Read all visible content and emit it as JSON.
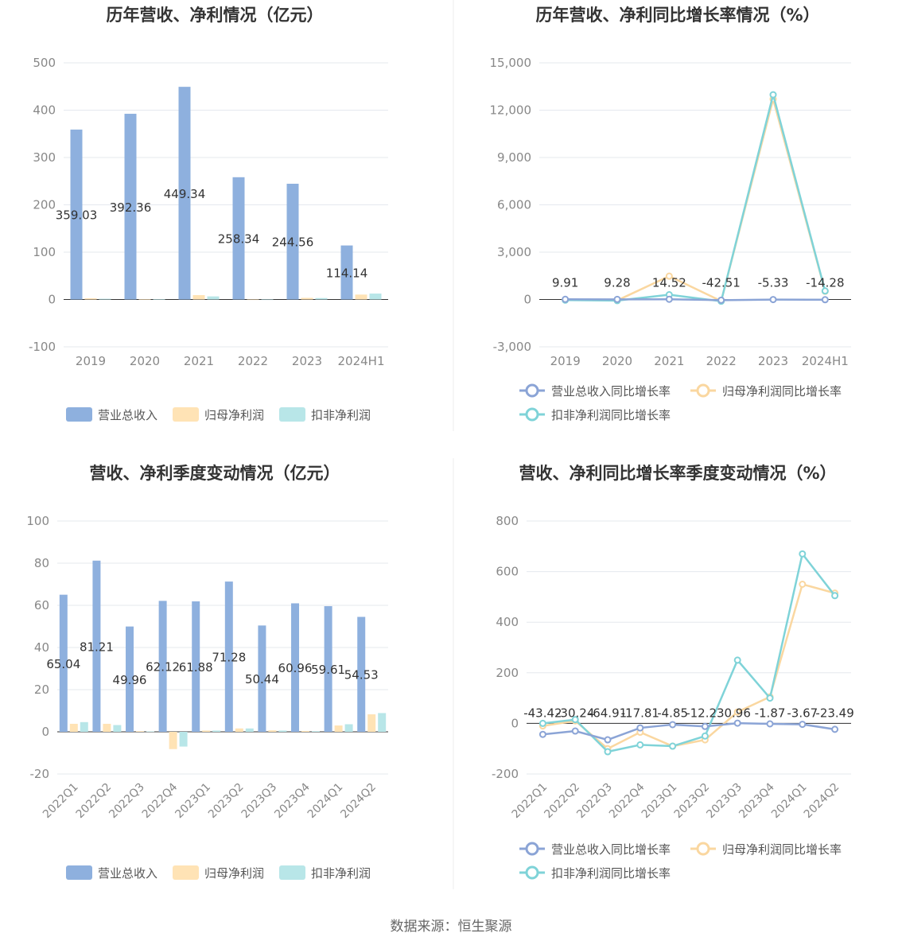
{
  "footer": {
    "source": "数据来源：恒生聚源"
  },
  "colors": {
    "revenue": "#8eb0de",
    "parent": "#ffe3b5",
    "nonrec": "#b8e6e8",
    "revenue_line": "#8ba4d6",
    "parent_line": "#fad7a0",
    "nonrec_line": "#7fd3d8",
    "grid": "#e5e8ee",
    "axis_text": "#888888",
    "title": "#333333"
  },
  "chart_data": [
    {
      "id": "annual-amount",
      "type": "bar",
      "title": "历年营收、净利情况（亿元）",
      "categories": [
        "2019",
        "2020",
        "2021",
        "2022",
        "2023",
        "2024H1"
      ],
      "ylim": [
        -100,
        500
      ],
      "yticks": [
        -100,
        0,
        100,
        200,
        300,
        400,
        500
      ],
      "series": [
        {
          "name": "营业总收入",
          "color_key": "revenue",
          "values": [
            359.03,
            392.36,
            449.34,
            258.34,
            244.56,
            114.14
          ],
          "labels": [
            "359.03",
            "392.36",
            "449.34",
            "258.34",
            "244.56",
            "114.14"
          ]
        },
        {
          "name": "归母净利润",
          "color_key": "parent",
          "values": [
            2.5,
            0.8,
            9.3,
            -0.5,
            3.5,
            10.4
          ]
        },
        {
          "name": "扣非净利润",
          "color_key": "nonrec",
          "values": [
            1.5,
            0.3,
            6.5,
            -1.0,
            3.0,
            12.5
          ]
        }
      ],
      "legend_position": "bottom"
    },
    {
      "id": "annual-growth",
      "type": "line",
      "title": "历年营收、净利同比增长率情况（%）",
      "categories": [
        "2019",
        "2020",
        "2021",
        "2022",
        "2023",
        "2024H1"
      ],
      "ylim": [
        -3000,
        15000
      ],
      "yticks": [
        -3000,
        0,
        3000,
        6000,
        9000,
        12000,
        15000
      ],
      "tick_labels": [
        "-3,000",
        "0",
        "3,000",
        "6,000",
        "9,000",
        "12,000",
        "15,000"
      ],
      "series": [
        {
          "name": "营业总收入同比增长率",
          "color_key": "revenue_line",
          "values": [
            9.91,
            9.28,
            14.52,
            -42.51,
            -5.33,
            -14.28
          ],
          "labels": [
            "9.91",
            "9.28",
            "14.52",
            "-42.51",
            "-5.33",
            "-14.28"
          ]
        },
        {
          "name": "归母净利润同比增长率",
          "color_key": "parent_line",
          "values": [
            -20,
            -60,
            1480,
            -100,
            12700,
            520
          ]
        },
        {
          "name": "扣非净利润同比增长率",
          "color_key": "nonrec_line",
          "values": [
            -40,
            -70,
            300,
            -110,
            12980,
            540
          ]
        }
      ],
      "legend_position": "bottom"
    },
    {
      "id": "quarterly-amount",
      "type": "bar",
      "title": "营收、净利季度变动情况（亿元）",
      "categories": [
        "2022Q1",
        "2022Q2",
        "2022Q3",
        "2022Q4",
        "2023Q1",
        "2023Q2",
        "2023Q3",
        "2023Q4",
        "2024Q1",
        "2024Q2"
      ],
      "ylim": [
        -20,
        100
      ],
      "yticks": [
        -20,
        0,
        20,
        40,
        60,
        80,
        100
      ],
      "rotate_x": true,
      "series": [
        {
          "name": "营业总收入",
          "color_key": "revenue",
          "values": [
            65.04,
            81.21,
            49.96,
            62.12,
            61.88,
            71.28,
            50.44,
            60.96,
            59.61,
            54.53
          ],
          "labels": [
            "65.04",
            "81.21",
            "49.96",
            "62.12",
            "61.88",
            "71.28",
            "50.44",
            "60.96",
            "59.61",
            "54.53"
          ]
        },
        {
          "name": "归母净利润",
          "color_key": "parent",
          "values": [
            3.8,
            3.8,
            0.3,
            -8.2,
            0.6,
            1.6,
            0.7,
            0.4,
            3.0,
            8.3
          ]
        },
        {
          "name": "扣非净利润",
          "color_key": "nonrec",
          "values": [
            4.6,
            3.2,
            0.2,
            -7.0,
            0.6,
            1.6,
            0.6,
            0.3,
            3.6,
            8.9
          ]
        }
      ],
      "legend_position": "bottom"
    },
    {
      "id": "quarterly-growth",
      "type": "line",
      "title": "营收、净利同比增长率季度变动情况（%）",
      "categories": [
        "2022Q1",
        "2022Q2",
        "2022Q3",
        "2022Q4",
        "2023Q1",
        "2023Q2",
        "2023Q3",
        "2023Q4",
        "2024Q1",
        "2024Q2"
      ],
      "ylim": [
        -200,
        800
      ],
      "yticks": [
        -200,
        0,
        200,
        400,
        600,
        800
      ],
      "rotate_x": true,
      "series": [
        {
          "name": "营业总收入同比增长率",
          "color_key": "revenue_line",
          "values": [
            -43.42,
            -30.24,
            -64.91,
            -17.81,
            -4.85,
            -12.23,
            0.96,
            -1.87,
            -3.67,
            -23.49
          ],
          "labels": [
            "-43.42",
            "-30.24",
            "-64.91",
            "-17.81",
            "-4.85",
            "-12.23",
            "0.96",
            "-1.87",
            "-3.67",
            "-23.49"
          ]
        },
        {
          "name": "归母净利润同比增长率",
          "color_key": "parent_line",
          "values": [
            -10,
            10,
            -100,
            -35,
            -90,
            -65,
            45,
            105,
            550,
            515
          ]
        },
        {
          "name": "扣非净利润同比增长率",
          "color_key": "nonrec_line",
          "values": [
            0,
            15,
            -112,
            -85,
            -90,
            -50,
            250,
            100,
            670,
            505
          ]
        }
      ],
      "legend_position": "bottom"
    }
  ]
}
